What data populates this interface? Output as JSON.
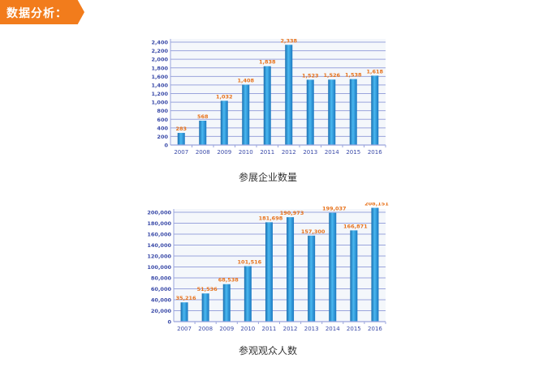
{
  "header": {
    "title": "数据分析："
  },
  "colors": {
    "accent": "#f27c1c",
    "bar": "#2a96d8",
    "grid": "#9aa4dc",
    "axis_text": "#3a4aa8",
    "value_text": "#e8731c"
  },
  "chart_data": [
    {
      "type": "bar",
      "title": "参展企业数量",
      "categories": [
        "2007",
        "2008",
        "2009",
        "2010",
        "2011",
        "2012",
        "2013",
        "2014",
        "2015",
        "2016"
      ],
      "values": [
        283,
        568,
        1032,
        1408,
        1838,
        2338,
        1523,
        1526,
        1538,
        1618
      ],
      "value_labels": [
        "283",
        "568",
        "1,032",
        "1,408",
        "1,838",
        "2,338",
        "1,523",
        "1,526",
        "1,538",
        "1,618"
      ],
      "yticks": [
        "0",
        "200",
        "400",
        "600",
        "800",
        "1,000",
        "1,200",
        "1,400",
        "1,600",
        "1,800",
        "2,000",
        "2,200",
        "2,400"
      ],
      "ylim": [
        0,
        2400
      ],
      "grid": true
    },
    {
      "type": "bar",
      "title": "参观观众人数",
      "categories": [
        "2007",
        "2008",
        "2009",
        "2010",
        "2011",
        "2012",
        "2013",
        "2014",
        "2015",
        "2016"
      ],
      "values": [
        35216,
        51536,
        68538,
        101516,
        181698,
        190973,
        157300,
        199037,
        166871,
        208151
      ],
      "value_labels": [
        "35,216",
        "51,536",
        "68,538",
        "101,516",
        "181,698",
        "190,973",
        "157,300",
        "199,037",
        "166,871",
        "208,151"
      ],
      "yticks": [
        "0",
        "20,000",
        "40,000",
        "60,000",
        "80,000",
        "100,000",
        "120,000",
        "140,000",
        "160,000",
        "180,000",
        "200,000"
      ],
      "ylim": [
        0,
        200000
      ],
      "grid": true
    }
  ]
}
